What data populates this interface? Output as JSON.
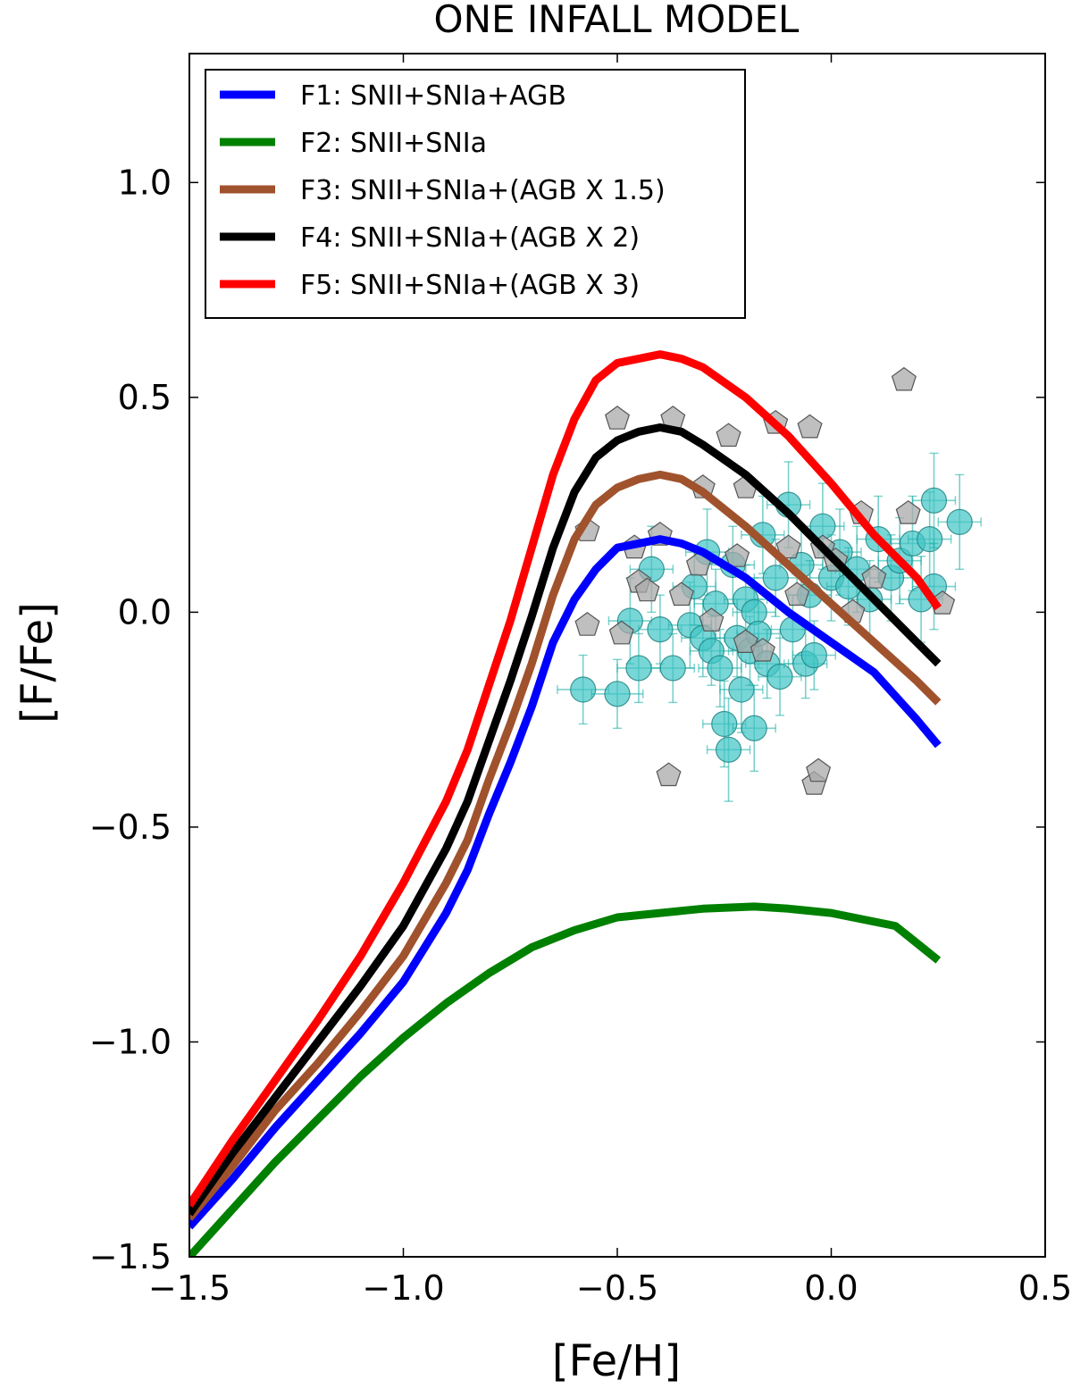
{
  "chart_data": {
    "type": "line",
    "title": "ONE INFALL MODEL",
    "xlabel": "[Fe/H]",
    "ylabel": "[F/Fe]",
    "xlim": [
      -1.5,
      0.5
    ],
    "ylim": [
      -1.5,
      1.3
    ],
    "xticks": [
      -1.5,
      -1.0,
      -0.5,
      0.0,
      0.5
    ],
    "yticks": [
      -1.5,
      -1.0,
      -0.5,
      0.0,
      0.5,
      1.0
    ],
    "xtick_labels": [
      "−1.5",
      "−1.0",
      "−0.5",
      "0.0",
      "0.5"
    ],
    "ytick_labels": [
      "−1.5",
      "−1.0",
      "−0.5",
      "0.0",
      "0.5",
      "1.0"
    ],
    "grid": false,
    "legend_position": "top-left",
    "series": [
      {
        "name": "F1: SNII+SNIa+AGB",
        "color": "#0000ff",
        "x": [
          -1.5,
          -1.4,
          -1.3,
          -1.2,
          -1.1,
          -1.0,
          -0.9,
          -0.85,
          -0.8,
          -0.75,
          -0.7,
          -0.65,
          -0.6,
          -0.55,
          -0.5,
          -0.45,
          -0.4,
          -0.35,
          -0.3,
          -0.2,
          -0.1,
          0.0,
          0.1,
          0.2,
          0.25
        ],
        "y": [
          -1.43,
          -1.32,
          -1.2,
          -1.09,
          -0.98,
          -0.86,
          -0.7,
          -0.6,
          -0.47,
          -0.35,
          -0.22,
          -0.07,
          0.03,
          0.1,
          0.15,
          0.16,
          0.17,
          0.16,
          0.14,
          0.08,
          0.0,
          -0.07,
          -0.14,
          -0.25,
          -0.31
        ]
      },
      {
        "name": "F2: SNII+SNIa",
        "color": "#008000",
        "x": [
          -1.5,
          -1.4,
          -1.3,
          -1.2,
          -1.1,
          -1.0,
          -0.9,
          -0.8,
          -0.7,
          -0.6,
          -0.5,
          -0.4,
          -0.3,
          -0.18,
          -0.1,
          0.0,
          0.15,
          0.2,
          0.25
        ],
        "y": [
          -1.5,
          -1.39,
          -1.28,
          -1.18,
          -1.08,
          -0.99,
          -0.91,
          -0.84,
          -0.78,
          -0.74,
          -0.71,
          -0.7,
          -0.69,
          -0.685,
          -0.69,
          -0.7,
          -0.73,
          -0.77,
          -0.81
        ]
      },
      {
        "name": "F3: SNII+SNIa+(AGB X 1.5)",
        "color": "#a0522d",
        "x": [
          -1.5,
          -1.4,
          -1.3,
          -1.2,
          -1.1,
          -1.0,
          -0.9,
          -0.85,
          -0.8,
          -0.75,
          -0.7,
          -0.65,
          -0.6,
          -0.55,
          -0.5,
          -0.45,
          -0.4,
          -0.35,
          -0.3,
          -0.2,
          -0.1,
          0.0,
          0.1,
          0.2,
          0.25
        ],
        "y": [
          -1.41,
          -1.29,
          -1.16,
          -1.05,
          -0.93,
          -0.8,
          -0.63,
          -0.53,
          -0.39,
          -0.26,
          -0.12,
          0.04,
          0.17,
          0.25,
          0.29,
          0.31,
          0.32,
          0.31,
          0.28,
          0.2,
          0.11,
          0.02,
          -0.07,
          -0.16,
          -0.21
        ]
      },
      {
        "name": "F4: SNII+SNIa+(AGB X 2)",
        "color": "#000000",
        "x": [
          -1.5,
          -1.4,
          -1.3,
          -1.2,
          -1.1,
          -1.0,
          -0.9,
          -0.85,
          -0.8,
          -0.75,
          -0.7,
          -0.65,
          -0.6,
          -0.55,
          -0.5,
          -0.45,
          -0.4,
          -0.35,
          -0.3,
          -0.2,
          -0.1,
          0.0,
          0.1,
          0.2,
          0.25
        ],
        "y": [
          -1.4,
          -1.26,
          -1.13,
          -1.0,
          -0.87,
          -0.73,
          -0.55,
          -0.44,
          -0.3,
          -0.16,
          -0.01,
          0.15,
          0.28,
          0.36,
          0.4,
          0.42,
          0.43,
          0.42,
          0.39,
          0.32,
          0.23,
          0.13,
          0.03,
          -0.07,
          -0.12
        ]
      },
      {
        "name": "F5: SNII+SNIa+(AGB X 3)",
        "color": "#ff0000",
        "x": [
          -1.5,
          -1.4,
          -1.3,
          -1.2,
          -1.1,
          -1.0,
          -0.9,
          -0.85,
          -0.8,
          -0.75,
          -0.7,
          -0.65,
          -0.6,
          -0.55,
          -0.5,
          -0.45,
          -0.4,
          -0.35,
          -0.3,
          -0.2,
          -0.1,
          0.0,
          0.1,
          0.2,
          0.25
        ],
        "y": [
          -1.38,
          -1.23,
          -1.09,
          -0.95,
          -0.8,
          -0.63,
          -0.44,
          -0.32,
          -0.17,
          -0.02,
          0.15,
          0.32,
          0.45,
          0.54,
          0.58,
          0.59,
          0.6,
          0.59,
          0.57,
          0.5,
          0.41,
          0.3,
          0.18,
          0.08,
          0.01
        ]
      }
    ],
    "observations": {
      "circles": {
        "color": "#20b2aa",
        "points": [
          {
            "x": -0.58,
            "y": -0.18,
            "xerr": 0.06,
            "yerr": 0.08
          },
          {
            "x": -0.5,
            "y": -0.19,
            "xerr": 0.06,
            "yerr": 0.08
          },
          {
            "x": -0.47,
            "y": -0.02,
            "xerr": 0.05,
            "yerr": 0.1
          },
          {
            "x": -0.45,
            "y": -0.13,
            "xerr": 0.05,
            "yerr": 0.08
          },
          {
            "x": -0.42,
            "y": 0.1,
            "xerr": 0.05,
            "yerr": 0.1
          },
          {
            "x": -0.4,
            "y": -0.04,
            "xerr": 0.05,
            "yerr": 0.08
          },
          {
            "x": -0.37,
            "y": -0.13,
            "xerr": 0.05,
            "yerr": 0.08
          },
          {
            "x": -0.33,
            "y": -0.03,
            "xerr": 0.05,
            "yerr": 0.1
          },
          {
            "x": -0.32,
            "y": 0.06,
            "xerr": 0.05,
            "yerr": 0.09
          },
          {
            "x": -0.3,
            "y": -0.06,
            "xerr": 0.05,
            "yerr": 0.09
          },
          {
            "x": -0.29,
            "y": 0.14,
            "xerr": 0.05,
            "yerr": 0.1
          },
          {
            "x": -0.28,
            "y": -0.09,
            "xerr": 0.05,
            "yerr": 0.08
          },
          {
            "x": -0.27,
            "y": 0.02,
            "xerr": 0.05,
            "yerr": 0.08
          },
          {
            "x": -0.26,
            "y": -0.13,
            "xerr": 0.05,
            "yerr": 0.09
          },
          {
            "x": -0.25,
            "y": -0.26,
            "xerr": 0.05,
            "yerr": 0.1
          },
          {
            "x": -0.24,
            "y": -0.32,
            "xerr": 0.05,
            "yerr": 0.12
          },
          {
            "x": -0.23,
            "y": 0.11,
            "xerr": 0.05,
            "yerr": 0.09
          },
          {
            "x": -0.22,
            "y": -0.06,
            "xerr": 0.05,
            "yerr": 0.09
          },
          {
            "x": -0.21,
            "y": -0.18,
            "xerr": 0.05,
            "yerr": 0.1
          },
          {
            "x": -0.2,
            "y": 0.03,
            "xerr": 0.05,
            "yerr": 0.08
          },
          {
            "x": -0.19,
            "y": -0.09,
            "xerr": 0.05,
            "yerr": 0.08
          },
          {
            "x": -0.18,
            "y": -0.27,
            "xerr": 0.05,
            "yerr": 0.1
          },
          {
            "x": -0.18,
            "y": 0.0,
            "xerr": 0.05,
            "yerr": 0.08
          },
          {
            "x": -0.17,
            "y": -0.05,
            "xerr": 0.05,
            "yerr": 0.08
          },
          {
            "x": -0.16,
            "y": 0.18,
            "xerr": 0.05,
            "yerr": 0.09
          },
          {
            "x": -0.15,
            "y": -0.12,
            "xerr": 0.05,
            "yerr": 0.08
          },
          {
            "x": -0.13,
            "y": 0.08,
            "xerr": 0.05,
            "yerr": 0.09
          },
          {
            "x": -0.12,
            "y": -0.15,
            "xerr": 0.05,
            "yerr": 0.09
          },
          {
            "x": -0.1,
            "y": 0.25,
            "xerr": 0.05,
            "yerr": 0.1
          },
          {
            "x": -0.09,
            "y": -0.04,
            "xerr": 0.05,
            "yerr": 0.08
          },
          {
            "x": -0.07,
            "y": 0.11,
            "xerr": 0.05,
            "yerr": 0.09
          },
          {
            "x": -0.06,
            "y": -0.12,
            "xerr": 0.05,
            "yerr": 0.08
          },
          {
            "x": -0.05,
            "y": 0.04,
            "xerr": 0.05,
            "yerr": 0.08
          },
          {
            "x": -0.04,
            "y": -0.1,
            "xerr": 0.05,
            "yerr": 0.08
          },
          {
            "x": -0.02,
            "y": 0.2,
            "xerr": 0.05,
            "yerr": 0.1
          },
          {
            "x": 0.0,
            "y": 0.08,
            "xerr": 0.05,
            "yerr": 0.1
          },
          {
            "x": 0.02,
            "y": 0.14,
            "xerr": 0.05,
            "yerr": 0.1
          },
          {
            "x": 0.04,
            "y": 0.06,
            "xerr": 0.05,
            "yerr": 0.09
          },
          {
            "x": 0.06,
            "y": 0.1,
            "xerr": 0.05,
            "yerr": 0.1
          },
          {
            "x": 0.09,
            "y": 0.03,
            "xerr": 0.05,
            "yerr": 0.09
          },
          {
            "x": 0.11,
            "y": 0.17,
            "xerr": 0.05,
            "yerr": 0.1
          },
          {
            "x": 0.14,
            "y": 0.08,
            "xerr": 0.05,
            "yerr": 0.1
          },
          {
            "x": 0.16,
            "y": 0.12,
            "xerr": 0.05,
            "yerr": 0.1
          },
          {
            "x": 0.19,
            "y": 0.16,
            "xerr": 0.05,
            "yerr": 0.11
          },
          {
            "x": 0.21,
            "y": 0.03,
            "xerr": 0.05,
            "yerr": 0.1
          },
          {
            "x": 0.23,
            "y": 0.17,
            "xerr": 0.05,
            "yerr": 0.11
          },
          {
            "x": 0.24,
            "y": 0.06,
            "xerr": 0.05,
            "yerr": 0.1
          },
          {
            "x": 0.24,
            "y": 0.26,
            "xerr": 0.05,
            "yerr": 0.11
          },
          {
            "x": 0.3,
            "y": 0.21,
            "xerr": 0.05,
            "yerr": 0.11
          }
        ]
      },
      "pentagons": {
        "color": "#a9a9a9",
        "points": [
          {
            "x": -0.57,
            "y": 0.19
          },
          {
            "x": -0.57,
            "y": -0.03
          },
          {
            "x": -0.49,
            "y": -0.05
          },
          {
            "x": -0.5,
            "y": 0.45
          },
          {
            "x": -0.45,
            "y": 0.07
          },
          {
            "x": -0.46,
            "y": 0.15
          },
          {
            "x": -0.43,
            "y": 0.05
          },
          {
            "x": -0.4,
            "y": 0.18
          },
          {
            "x": -0.37,
            "y": 0.45
          },
          {
            "x": -0.35,
            "y": 0.04
          },
          {
            "x": -0.31,
            "y": 0.11
          },
          {
            "x": -0.3,
            "y": 0.29
          },
          {
            "x": -0.28,
            "y": -0.02
          },
          {
            "x": -0.24,
            "y": 0.41
          },
          {
            "x": -0.22,
            "y": 0.13
          },
          {
            "x": -0.2,
            "y": -0.07
          },
          {
            "x": -0.2,
            "y": 0.29
          },
          {
            "x": -0.16,
            "y": -0.09
          },
          {
            "x": -0.13,
            "y": 0.44
          },
          {
            "x": -0.1,
            "y": 0.15
          },
          {
            "x": -0.05,
            "y": 0.43
          },
          {
            "x": -0.04,
            "y": -0.4
          },
          {
            "x": -0.03,
            "y": -0.37
          },
          {
            "x": -0.08,
            "y": 0.04
          },
          {
            "x": -0.02,
            "y": 0.15
          },
          {
            "x": 0.01,
            "y": 0.12
          },
          {
            "x": 0.05,
            "y": 0.0
          },
          {
            "x": 0.07,
            "y": 0.23
          },
          {
            "x": 0.1,
            "y": 0.08
          },
          {
            "x": 0.18,
            "y": 0.23
          },
          {
            "x": 0.26,
            "y": 0.02
          },
          {
            "x": 0.17,
            "y": 0.54
          },
          {
            "x": -0.38,
            "y": -0.38
          }
        ]
      }
    }
  }
}
